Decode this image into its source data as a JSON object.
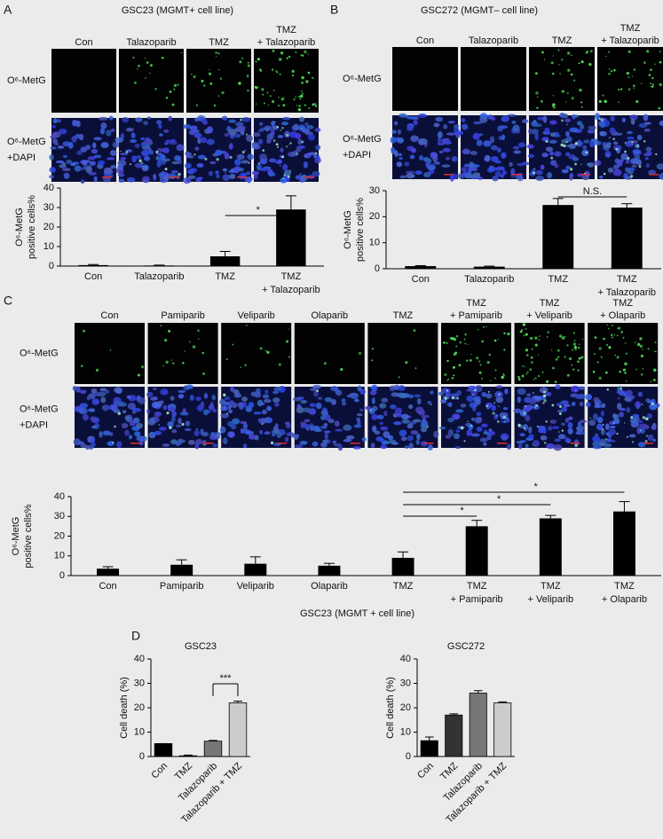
{
  "panels": [
    {
      "label": "A",
      "title": "GSC23 (MGMT+ cell line)",
      "columns": [
        [
          "Con"
        ],
        [
          "Talazoparib"
        ],
        [
          "TMZ"
        ],
        [
          "TMZ",
          "+ Talazoparib"
        ]
      ],
      "rows": [
        [
          "O⁶-MetG"
        ],
        [
          "O⁶-MetG",
          "+DAPI"
        ]
      ]
    },
    {
      "label": "B",
      "title": "GSC272 (MGMT– cell line)",
      "columns": [
        [
          "Con"
        ],
        [
          "Talazoparib"
        ],
        [
          "TMZ"
        ],
        [
          "TMZ",
          "+ Talazoparib"
        ]
      ],
      "rows": [
        [
          "O⁶-MetG"
        ],
        [
          "O⁶-MetG",
          "+DAPI"
        ]
      ]
    },
    {
      "label": "C",
      "columns": [
        [
          "Con"
        ],
        [
          "Pamiparib"
        ],
        [
          "Veliparib"
        ],
        [
          "Olaparib"
        ],
        [
          "TMZ"
        ],
        [
          "TMZ",
          "+ Pamiparib"
        ],
        [
          "TMZ",
          "+ Veliparib"
        ],
        [
          "TMZ",
          "+ Olaparib"
        ]
      ],
      "rows": [
        [
          "O⁶-MetG"
        ],
        [
          "O⁶-MetG",
          "+DAPI"
        ]
      ]
    },
    {
      "label": "D"
    }
  ],
  "chart_data": [
    {
      "type": "bar",
      "ylabel": [
        "O⁶-MetG",
        "positive cells%"
      ],
      "categories": [
        [
          "Con"
        ],
        [
          "Talazoparib"
        ],
        [
          "TMZ"
        ],
        [
          "TMZ",
          "+ Talazoparib"
        ]
      ],
      "values": [
        0.5,
        0.3,
        5,
        29
      ],
      "errors": [
        0.3,
        0.2,
        2.5,
        7
      ],
      "color": "#000000",
      "ylim": [
        0,
        40
      ],
      "yticks": [
        0,
        10,
        20,
        30,
        40
      ],
      "annotations": [
        "*"
      ]
    },
    {
      "type": "bar",
      "ylabel": [
        "O⁶-MetG",
        "positive cells%"
      ],
      "categories": [
        [
          "Con"
        ],
        [
          "Talazoparib"
        ],
        [
          "TMZ"
        ],
        [
          "TMZ",
          "+ Talazoparib"
        ]
      ],
      "values": [
        1,
        0.8,
        24.5,
        23.5
      ],
      "errors": [
        0.2,
        0.2,
        2.5,
        1.5
      ],
      "color": "#000000",
      "ylim": [
        0,
        30
      ],
      "yticks": [
        0,
        10,
        20,
        30
      ],
      "annotations": [
        "N.S."
      ]
    },
    {
      "type": "bar",
      "ylabel": [
        "O⁶-MetG",
        "positive cells%"
      ],
      "xlabel": "GSC23 (MGMT + cell line)",
      "categories": [
        [
          "Con"
        ],
        [
          "Pamiparib"
        ],
        [
          "Veliparib"
        ],
        [
          "Olaparib"
        ],
        [
          "TMZ"
        ],
        [
          "TMZ",
          "+ Pamiparib"
        ],
        [
          "TMZ",
          "+ Veliparib"
        ],
        [
          "TMZ",
          "+ Olaparib"
        ]
      ],
      "values": [
        3.5,
        5.5,
        6,
        5,
        9,
        25,
        29,
        32.5
      ],
      "errors": [
        1,
        2.5,
        3.5,
        1.2,
        3,
        3,
        1.5,
        5
      ],
      "color": "#000000",
      "ylim": [
        0,
        40
      ],
      "yticks": [
        0,
        10,
        20,
        30,
        40
      ],
      "annotations": [
        "*",
        "*",
        "*"
      ]
    },
    {
      "type": "bar",
      "title": "GSC23",
      "ylabel": [
        "Cell death (%)"
      ],
      "categories": [
        [
          "Con"
        ],
        [
          "TMZ"
        ],
        [
          "Talazoparib"
        ],
        [
          "Talazoparib + TMZ"
        ]
      ],
      "values": [
        5.3,
        0.3,
        6.3,
        22
      ],
      "errors": [
        0,
        0.3,
        0.3,
        0.7
      ],
      "colors": [
        "#000000",
        "#333333",
        "#777777",
        "#cccccc"
      ],
      "ylim": [
        0,
        40
      ],
      "yticks": [
        0,
        10,
        20,
        30,
        40
      ],
      "annotations": [
        "***"
      ]
    },
    {
      "type": "bar",
      "title": "GSC272",
      "ylabel": [
        "Cell death (%)"
      ],
      "categories": [
        [
          "Con"
        ],
        [
          "TMZ"
        ],
        [
          "Talazoparib"
        ],
        [
          "Talazoparib + TMZ"
        ]
      ],
      "values": [
        6.5,
        17,
        26,
        22
      ],
      "errors": [
        1.5,
        0.5,
        1,
        0.4
      ],
      "colors": [
        "#000000",
        "#333333",
        "#777777",
        "#cccccc"
      ],
      "ylim": [
        0,
        40
      ],
      "yticks": [
        0,
        10,
        20,
        30,
        40
      ]
    }
  ]
}
